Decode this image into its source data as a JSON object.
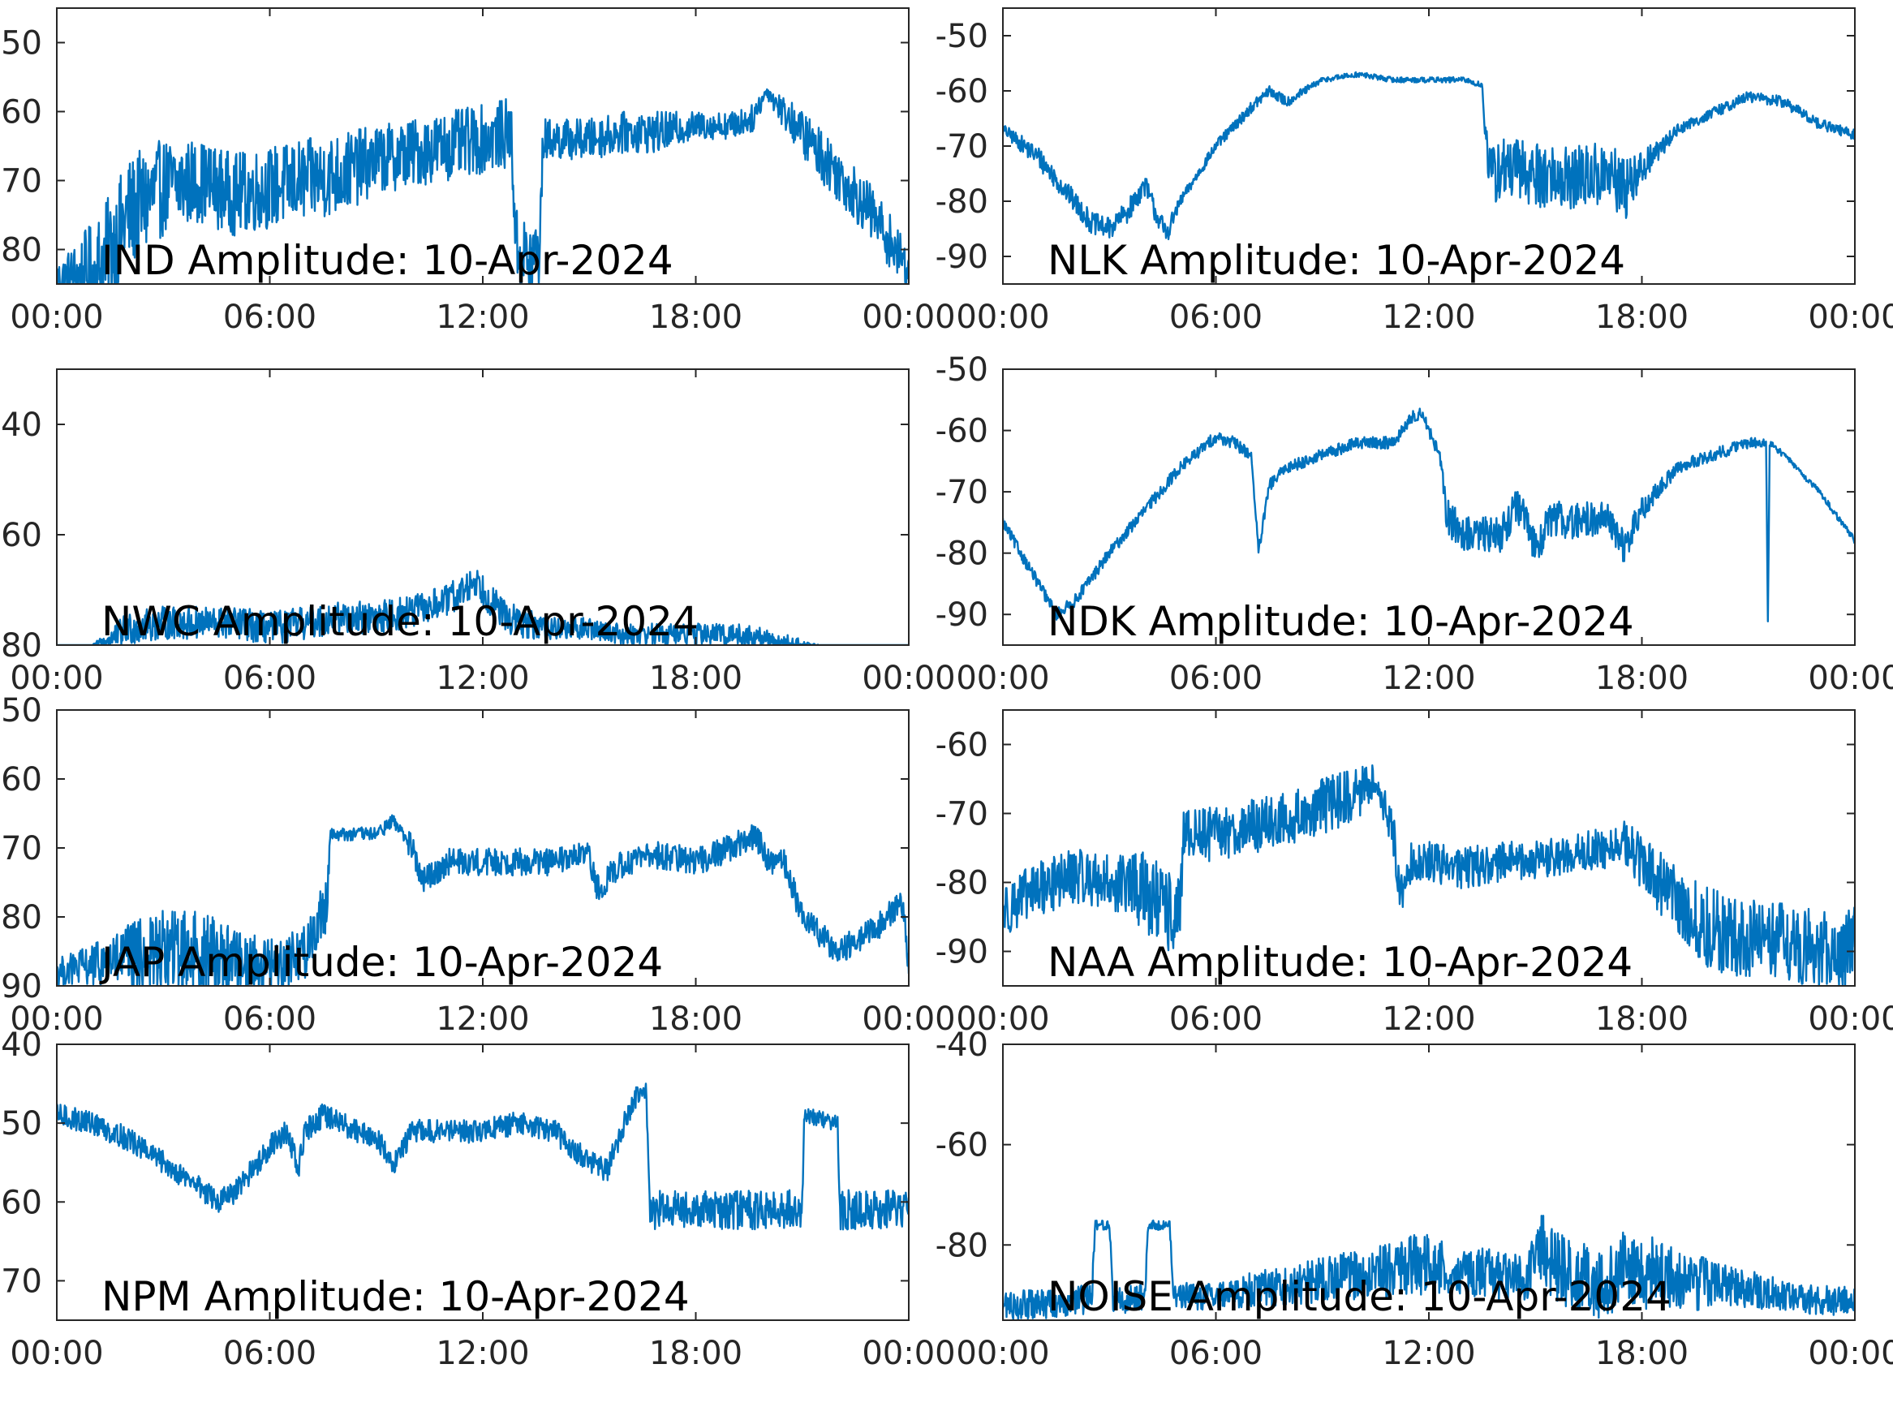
{
  "figure": {
    "colors": {
      "trace": "#0072BD",
      "axes": "#262626",
      "background": "#ffffff",
      "title": "#000000"
    }
  },
  "chart_data": [
    {
      "type": "line",
      "title": "IND Amplitude: 10-Apr-2024",
      "xlabel": "",
      "ylabel": "",
      "xticks": [
        "00:00",
        "06:00",
        "12:00",
        "18:00",
        "00:00"
      ],
      "xlim": [
        0,
        24
      ],
      "yticks": [
        "50",
        "60",
        "70",
        "80"
      ],
      "yticks_values": [
        -50,
        -60,
        -70,
        -80
      ],
      "ylim": [
        -85,
        -45
      ],
      "grid": false,
      "series": [
        {
          "x": [
            0,
            1,
            1.5,
            2,
            2.5,
            3,
            4,
            5,
            6,
            7,
            8,
            9,
            10,
            11,
            12,
            12.8,
            12.95,
            13.3,
            13.6,
            13.7,
            14,
            15,
            16,
            17,
            18,
            19,
            19.6,
            20,
            20.3,
            20.8,
            21.5,
            22,
            22.5,
            23,
            23.5,
            24
          ],
          "y": [
            -84,
            -84,
            -80,
            -75,
            -73,
            -71,
            -70,
            -72,
            -71,
            -70,
            -69,
            -67,
            -66,
            -65,
            -64,
            -63,
            -80,
            -82,
            -80,
            -64,
            -64,
            -64,
            -63,
            -63,
            -62,
            -62,
            -61,
            -57,
            -59,
            -62,
            -66,
            -69,
            -72,
            -75,
            -79,
            -83
          ],
          "noise": [
            2,
            8,
            8,
            8,
            8,
            7,
            6,
            6,
            6,
            6,
            6,
            5,
            5,
            5,
            5,
            5,
            6,
            6,
            6,
            3,
            3,
            3,
            3,
            3,
            2,
            2,
            2,
            1,
            2,
            3,
            4,
            4,
            4,
            4,
            4,
            3
          ]
        }
      ]
    },
    {
      "type": "line",
      "title": "NLK Amplitude: 10-Apr-2024",
      "xlabel": "",
      "ylabel": "",
      "xticks": [
        "00:00",
        "06:00",
        "12:00",
        "18:00",
        "00:00"
      ],
      "xlim": [
        0,
        24
      ],
      "yticks": [
        "-50",
        "-60",
        "-70",
        "-80",
        "-90"
      ],
      "yticks_values": [
        -50,
        -60,
        -70,
        -80,
        -90
      ],
      "ylim": [
        -95,
        -45
      ],
      "grid": false,
      "series": [
        {
          "x": [
            0,
            1,
            2,
            2.5,
            3,
            3.5,
            4,
            4.3,
            4.6,
            5,
            6,
            7,
            7.5,
            8,
            9,
            10,
            11,
            12,
            13,
            13.5,
            13.7,
            14,
            15,
            16,
            17,
            17.5,
            18,
            19,
            20,
            21,
            22,
            23,
            24
          ],
          "y": [
            -67,
            -72,
            -80,
            -84,
            -85,
            -82,
            -77,
            -82,
            -86,
            -80,
            -70,
            -63,
            -60,
            -62,
            -58,
            -57,
            -58,
            -58,
            -58,
            -59,
            -76,
            -74,
            -75,
            -76,
            -75,
            -78,
            -74,
            -67,
            -64,
            -61,
            -62,
            -66,
            -68
          ],
          "noise": [
            1,
            2,
            2,
            2,
            2,
            2,
            2,
            2,
            2,
            1,
            1,
            1,
            1,
            1,
            0.5,
            0.5,
            0.5,
            0.5,
            0.5,
            0.5,
            6,
            6,
            6,
            6,
            6,
            6,
            3,
            1,
            1,
            1,
            1,
            1,
            1
          ]
        }
      ]
    },
    {
      "type": "line",
      "title": "NWC Amplitude: 10-Apr-2024",
      "xlabel": "",
      "ylabel": "",
      "xticks": [
        "00:00",
        "06:00",
        "12:00",
        "18:00",
        "00:00"
      ],
      "xlim": [
        0,
        24
      ],
      "yticks": [
        "40",
        "60",
        "80"
      ],
      "yticks_values": [
        -40,
        -60,
        -80
      ],
      "ylim": [
        -80,
        -30
      ],
      "grid": false,
      "series": [
        {
          "x": [
            0,
            1,
            1.5,
            2,
            3,
            4,
            5,
            6,
            7,
            8,
            9,
            10,
            11,
            11.5,
            11.8,
            12,
            12.5,
            13,
            14,
            15,
            16,
            17,
            18,
            19,
            20,
            21,
            21.5,
            22,
            22.5,
            23,
            24
          ],
          "y": [
            -80,
            -80,
            -79,
            -77,
            -76,
            -76,
            -76,
            -77,
            -76,
            -75,
            -75,
            -74,
            -72,
            -70,
            -68,
            -70,
            -74,
            -76,
            -77,
            -77,
            -78,
            -78,
            -78,
            -78,
            -79,
            -80,
            -80,
            -80,
            -80,
            -80,
            -80
          ],
          "noise": [
            0,
            0,
            2,
            3,
            3,
            3,
            3,
            3,
            3,
            3,
            3,
            3,
            3,
            3,
            3,
            3,
            3,
            3,
            2,
            2,
            2,
            2,
            2,
            2,
            2,
            1,
            0,
            0,
            0,
            0,
            0
          ]
        }
      ]
    },
    {
      "type": "line",
      "title": "NDK Amplitude: 10-Apr-2024",
      "xlabel": "",
      "ylabel": "",
      "xticks": [
        "00:00",
        "06:00",
        "12:00",
        "18:00",
        "00:00"
      ],
      "xlim": [
        0,
        24
      ],
      "yticks": [
        "-50",
        "-60",
        "-70",
        "-80",
        "-90"
      ],
      "yticks_values": [
        -50,
        -60,
        -70,
        -80,
        -90
      ],
      "ylim": [
        -95,
        -50
      ],
      "grid": false,
      "series": [
        {
          "x": [
            0,
            1,
            1.5,
            2,
            3,
            4,
            5,
            6,
            6.5,
            7,
            7.2,
            7.5,
            8,
            9,
            10,
            11,
            11.5,
            11.8,
            12,
            12.3,
            12.5,
            13,
            14,
            14.5,
            15,
            15.5,
            16,
            17,
            17.5,
            18,
            19,
            20,
            21,
            21.5,
            21.55,
            21.6,
            22,
            23,
            24
          ],
          "y": [
            -75,
            -85,
            -90,
            -88,
            -80,
            -73,
            -66,
            -61,
            -62,
            -64,
            -80,
            -69,
            -66,
            -64,
            -62,
            -62,
            -58,
            -57,
            -60,
            -64,
            -74,
            -77,
            -77,
            -72,
            -79,
            -74,
            -75,
            -74,
            -79,
            -73,
            -66,
            -64,
            -62,
            -62,
            -92,
            -62,
            -64,
            -70,
            -78
          ],
          "noise": [
            1,
            1,
            1,
            1,
            1,
            1,
            1,
            1,
            1,
            1,
            1,
            1,
            1,
            1,
            1,
            1,
            1,
            1,
            1,
            1,
            3,
            3,
            3,
            3,
            3,
            3,
            3,
            3,
            3,
            2,
            1,
            1,
            1,
            0.5,
            0,
            0.5,
            0.5,
            0.5,
            0.5
          ]
        }
      ]
    },
    {
      "type": "line",
      "title": "JAP Amplitude: 10-Apr-2024",
      "xlabel": "",
      "ylabel": "",
      "xticks": [
        "00:00",
        "06:00",
        "12:00",
        "18:00",
        "00:00"
      ],
      "xlim": [
        0,
        24
      ],
      "yticks": [
        "50",
        "60",
        "70",
        "80",
        "90"
      ],
      "yticks_values": [
        -50,
        -60,
        -70,
        -80,
        -90
      ],
      "ylim": [
        -90,
        -50
      ],
      "grid": false,
      "series": [
        {
          "x": [
            0,
            1,
            2,
            3,
            4,
            5,
            6,
            7,
            7.6,
            7.7,
            8,
            9,
            9.5,
            10,
            10.3,
            11,
            12,
            13,
            14,
            15,
            15.2,
            16,
            17,
            18,
            19,
            19.7,
            20,
            20.5,
            21,
            22,
            23,
            23.8,
            24
          ],
          "y": [
            -88,
            -87,
            -86,
            -85,
            -85,
            -86,
            -87,
            -85,
            -78,
            -68,
            -68,
            -68,
            -66,
            -70,
            -75,
            -72,
            -72,
            -72,
            -72,
            -71,
            -76,
            -72,
            -71,
            -72,
            -70,
            -68,
            -72,
            -72,
            -80,
            -85,
            -82,
            -78,
            -86
          ],
          "noise": [
            2,
            3,
            5,
            6,
            6,
            5,
            4,
            4,
            4,
            1,
            1,
            1,
            1,
            2,
            2,
            2,
            2,
            2,
            2,
            2,
            2,
            2,
            2,
            2,
            2,
            2,
            2,
            2,
            2,
            2,
            2,
            2,
            3
          ]
        }
      ]
    },
    {
      "type": "line",
      "title": "NAA Amplitude: 10-Apr-2024",
      "xlabel": "",
      "ylabel": "",
      "xticks": [
        "00:00",
        "06:00",
        "12:00",
        "18:00",
        "00:00"
      ],
      "xlim": [
        0,
        24
      ],
      "yticks": [
        "-60",
        "-70",
        "-80",
        "-90"
      ],
      "yticks_values": [
        -60,
        -70,
        -80,
        -90
      ],
      "ylim": [
        -95,
        -55
      ],
      "grid": false,
      "series": [
        {
          "x": [
            0,
            1,
            2,
            3,
            4,
            4.5,
            5,
            5.1,
            6,
            7,
            8,
            9,
            10,
            10.5,
            11,
            11.2,
            11.5,
            12,
            13,
            14,
            15,
            16,
            17,
            17.5,
            18,
            19,
            20,
            21,
            22,
            23,
            24
          ],
          "y": [
            -84,
            -81,
            -79,
            -80,
            -81,
            -84,
            -85,
            -73,
            -73,
            -72,
            -71,
            -69,
            -67,
            -65,
            -73,
            -82,
            -77,
            -77,
            -78,
            -77,
            -77,
            -76,
            -75,
            -74,
            -77,
            -83,
            -87,
            -88,
            -89,
            -90,
            -89
          ],
          "noise": [
            4,
            4,
            4,
            4,
            6,
            6,
            6,
            4,
            4,
            4,
            4,
            4,
            4,
            2,
            3,
            3,
            3,
            3,
            3,
            3,
            3,
            3,
            3,
            3,
            4,
            5,
            6,
            6,
            6,
            6,
            6
          ]
        }
      ]
    },
    {
      "type": "line",
      "title": "NPM Amplitude: 10-Apr-2024",
      "xlabel": "",
      "ylabel": "",
      "xticks": [
        "00:00",
        "06:00",
        "12:00",
        "18:00",
        "00:00"
      ],
      "xlim": [
        0,
        24
      ],
      "yticks": [
        "40",
        "50",
        "60",
        "70"
      ],
      "yticks_values": [
        -40,
        -50,
        -60,
        -70
      ],
      "ylim": [
        -75,
        -40
      ],
      "grid": false,
      "series": [
        {
          "x": [
            0,
            1,
            2,
            3,
            4,
            4.5,
            5,
            6,
            6.5,
            6.8,
            7,
            7.5,
            8,
            9,
            9.5,
            10,
            11,
            12,
            13,
            14,
            15,
            15.5,
            16,
            16.3,
            16.6,
            16.7,
            17,
            18,
            19,
            20,
            21,
            21.05,
            22,
            22.05,
            23,
            24
          ],
          "y": [
            -49,
            -50,
            -52,
            -55,
            -58,
            -60,
            -59,
            -53,
            -51,
            -56,
            -51,
            -49,
            -50,
            -52,
            -55,
            -51,
            -51,
            -51,
            -50,
            -51,
            -55,
            -56,
            -50,
            -47,
            -46,
            -61,
            -61,
            -61,
            -61,
            -61,
            -61,
            -49,
            -50,
            -61,
            -61,
            -61
          ],
          "noise": [
            1.5,
            1.5,
            1.5,
            1.5,
            1.5,
            1.5,
            1.5,
            1.5,
            1.5,
            1.5,
            1.5,
            1.5,
            1.5,
            1.5,
            1.5,
            1.5,
            1.5,
            1.5,
            1.5,
            1.5,
            1.5,
            1.5,
            1.5,
            1.5,
            1.5,
            2.5,
            2.5,
            2.5,
            2.5,
            2.5,
            2.5,
            1,
            1,
            2.5,
            2.5,
            2.5
          ]
        }
      ]
    },
    {
      "type": "line",
      "title": "NOISE Amplitude: 10-Apr-2024",
      "xlabel": "",
      "ylabel": "",
      "xticks": [
        "00:00",
        "06:00",
        "12:00",
        "18:00",
        "00:00"
      ],
      "xlim": [
        0,
        24
      ],
      "yticks": [
        "-40",
        "-60",
        "-80"
      ],
      "yticks_values": [
        -40,
        -60,
        -80
      ],
      "ylim": [
        -95,
        -40
      ],
      "grid": false,
      "series": [
        {
          "x": [
            0,
            1,
            2,
            2.5,
            2.6,
            3,
            3.1,
            3.6,
            3.7,
            4,
            4.1,
            4.7,
            4.8,
            6,
            8,
            10,
            11,
            11.5,
            12,
            13,
            14,
            14.8,
            15,
            15.5,
            16,
            17,
            17.5,
            18,
            18.5,
            19,
            20,
            21,
            22,
            23,
            24
          ],
          "y": [
            -92,
            -92,
            -91,
            -91,
            -76,
            -76,
            -91,
            -91,
            -90,
            -90,
            -76,
            -76,
            -90,
            -90,
            -88,
            -86,
            -85,
            -84,
            -84,
            -85,
            -86,
            -87,
            -78,
            -84,
            -86,
            -88,
            -84,
            -86,
            -85,
            -87,
            -88,
            -89,
            -90,
            -91,
            -91
          ],
          "noise": [
            3,
            3,
            3,
            3,
            1,
            1,
            3,
            3,
            3,
            3,
            1,
            1,
            3,
            3,
            4,
            5,
            6,
            6,
            6,
            5,
            5,
            5,
            7,
            7,
            7,
            7,
            7,
            7,
            7,
            6,
            5,
            4,
            3,
            3,
            3
          ]
        }
      ]
    }
  ]
}
